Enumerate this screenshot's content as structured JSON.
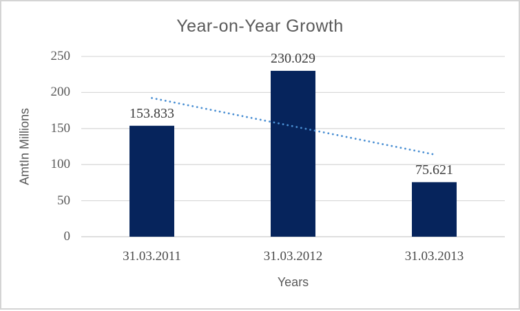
{
  "chart_data": {
    "type": "bar",
    "title": "Year-on-Year Growth",
    "xlabel": "Years",
    "ylabel": "AmtIn Millions",
    "categories": [
      "31.03.2011",
      "31.03.2012",
      "31.03.2013"
    ],
    "values": [
      153.833,
      230.029,
      75.621
    ],
    "data_labels": [
      "153.833",
      "230.029",
      "75.621"
    ],
    "yticks": [
      0,
      50,
      100,
      150,
      200,
      250
    ],
    "ylim": [
      0,
      250
    ],
    "grid": true,
    "legend": "none",
    "bar_color": "#06245c",
    "gridline_color": "#d9d9d9",
    "axis_line_color": "#c9c9c9",
    "trendline": {
      "type": "linear",
      "style": "dotted",
      "color": "#4a8fd3",
      "start_value": 192.3,
      "end_value": 114.0
    }
  }
}
